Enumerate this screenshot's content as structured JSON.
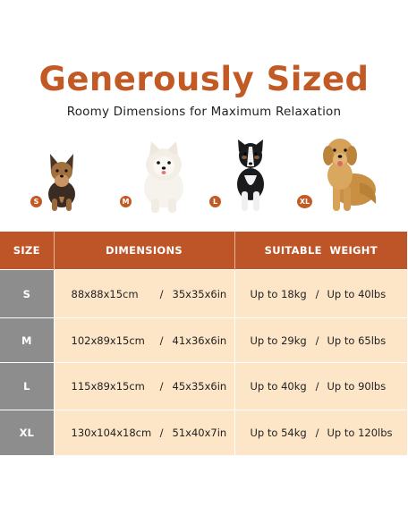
{
  "header": {
    "title": "Generously Sized",
    "subtitle": "Roomy Dimensions for Maximum Relaxation"
  },
  "dogs": [
    {
      "badge": "S",
      "icon": "yorkshire-terrier-icon"
    },
    {
      "badge": "M",
      "icon": "pomeranian-icon"
    },
    {
      "badge": "L",
      "icon": "border-collie-icon"
    },
    {
      "badge": "XL",
      "icon": "golden-retriever-icon"
    }
  ],
  "table": {
    "headers": {
      "size": "SIZE",
      "dimensions": "DIMENSIONS",
      "weight": "SUITABLE  WEIGHT"
    },
    "rows": [
      {
        "size": "S",
        "dim_cm": "88x88x15cm",
        "dim_in": "35x35x6in",
        "weight_kg": "Up to 18kg",
        "weight_lbs": "Up to 40lbs"
      },
      {
        "size": "M",
        "dim_cm": "102x89x15cm",
        "dim_in": "41x36x6in",
        "weight_kg": "Up to 29kg",
        "weight_lbs": "Up to 65lbs"
      },
      {
        "size": "L",
        "dim_cm": "115x89x15cm",
        "dim_in": "45x35x6in",
        "weight_kg": "Up to 40kg",
        "weight_lbs": "Up to 90lbs"
      },
      {
        "size": "XL",
        "dim_cm": "130x104x18cm",
        "dim_in": "51x40x7in",
        "weight_kg": "Up to 54kg",
        "weight_lbs": "Up to 120lbs"
      }
    ],
    "separator": "/"
  },
  "colors": {
    "accent": "#c15a25",
    "header_bg": "#bd5529",
    "row_bg": "#fde5c7",
    "size_col_bg": "#8d8d8d"
  }
}
